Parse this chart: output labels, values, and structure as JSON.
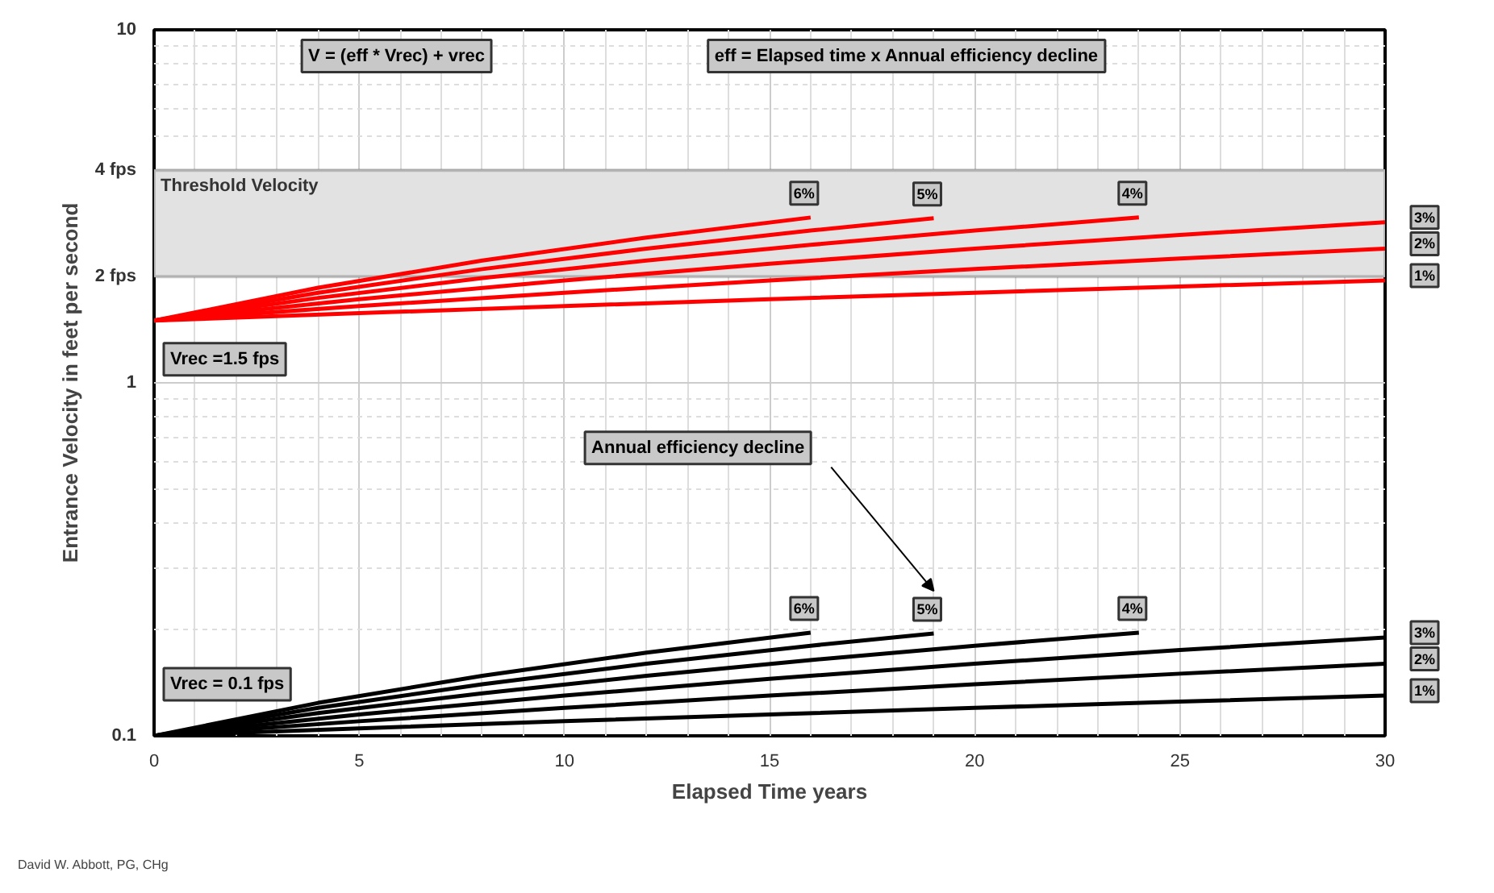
{
  "chart_data": {
    "type": "line",
    "xlabel": "Elapsed Time years",
    "ylabel": "Entrance Velocity in feet per second",
    "log": "y",
    "xlim": [
      0,
      30
    ],
    "ylim": [
      0.1,
      10
    ],
    "xticks": [
      0,
      5,
      10,
      15,
      20,
      25,
      30
    ],
    "yticks": [
      0.1,
      1,
      10,
      {
        "value": 2,
        "label": "2 fps"
      },
      {
        "value": 4,
        "label": "4 fps"
      }
    ],
    "grid": true,
    "bands": [
      {
        "axis": "y",
        "from": 2,
        "to": 4,
        "label": "Threshold Velocity",
        "color": "#e2e2e2"
      }
    ],
    "series": [
      {
        "name": "1%",
        "color": "#ff0000",
        "x": [
          0,
          5,
          10,
          15,
          20,
          25,
          30
        ],
        "values": [
          1.5,
          1.575,
          1.65,
          1.725,
          1.8,
          1.875,
          1.95
        ]
      },
      {
        "name": "2%",
        "color": "#ff0000",
        "x": [
          0,
          5,
          10,
          15,
          20,
          25,
          30
        ],
        "values": [
          1.5,
          1.65,
          1.8,
          1.95,
          2.1,
          2.25,
          2.4
        ]
      },
      {
        "name": "3%",
        "color": "#ff0000",
        "x": [
          0,
          5,
          10,
          15,
          20,
          25,
          30
        ],
        "values": [
          1.5,
          1.725,
          1.95,
          2.175,
          2.4,
          2.625,
          2.85
        ]
      },
      {
        "name": "4%",
        "color": "#ff0000",
        "x": [
          0,
          4,
          8,
          12,
          16,
          20,
          24
        ],
        "values": [
          1.5,
          1.74,
          1.98,
          2.22,
          2.46,
          2.7,
          2.94
        ]
      },
      {
        "name": "5%",
        "color": "#ff0000",
        "x": [
          0,
          4,
          8,
          12,
          16,
          19
        ],
        "values": [
          1.5,
          1.8,
          2.1,
          2.4,
          2.7,
          2.925
        ]
      },
      {
        "name": "6%",
        "color": "#ff0000",
        "x": [
          0,
          4,
          8,
          12,
          16
        ],
        "values": [
          1.5,
          1.86,
          2.22,
          2.58,
          2.94
        ]
      },
      {
        "name": "1%",
        "color": "#000000",
        "x": [
          0,
          5,
          10,
          15,
          20,
          25,
          30
        ],
        "values": [
          0.1,
          0.105,
          0.11,
          0.115,
          0.12,
          0.125,
          0.13
        ]
      },
      {
        "name": "2%",
        "color": "#000000",
        "x": [
          0,
          5,
          10,
          15,
          20,
          25,
          30
        ],
        "values": [
          0.1,
          0.11,
          0.12,
          0.13,
          0.14,
          0.15,
          0.16
        ]
      },
      {
        "name": "3%",
        "color": "#000000",
        "x": [
          0,
          5,
          10,
          15,
          20,
          25,
          30
        ],
        "values": [
          0.1,
          0.115,
          0.13,
          0.145,
          0.16,
          0.175,
          0.19
        ]
      },
      {
        "name": "4%",
        "color": "#000000",
        "x": [
          0,
          4,
          8,
          12,
          16,
          20,
          24
        ],
        "values": [
          0.1,
          0.116,
          0.132,
          0.148,
          0.164,
          0.18,
          0.196
        ]
      },
      {
        "name": "5%",
        "color": "#000000",
        "x": [
          0,
          4,
          8,
          12,
          16,
          19
        ],
        "values": [
          0.1,
          0.12,
          0.14,
          0.16,
          0.18,
          0.195
        ]
      },
      {
        "name": "6%",
        "color": "#000000",
        "x": [
          0,
          4,
          8,
          12,
          16
        ],
        "values": [
          0.1,
          0.124,
          0.148,
          0.172,
          0.196
        ]
      }
    ],
    "annotations": [
      "V = (eff * Vrec) + vrec",
      "eff = Elapsed time x Annual efficiency decline",
      {
        "text": "Vrec =1.5 fps",
        "x": 0,
        "y": 1.5
      },
      {
        "text": "Vrec = 0.1 fps",
        "x": 0,
        "y": 0.1
      },
      "Annual efficiency decline",
      "David W. Abbott, PG, CHg"
    ]
  }
}
